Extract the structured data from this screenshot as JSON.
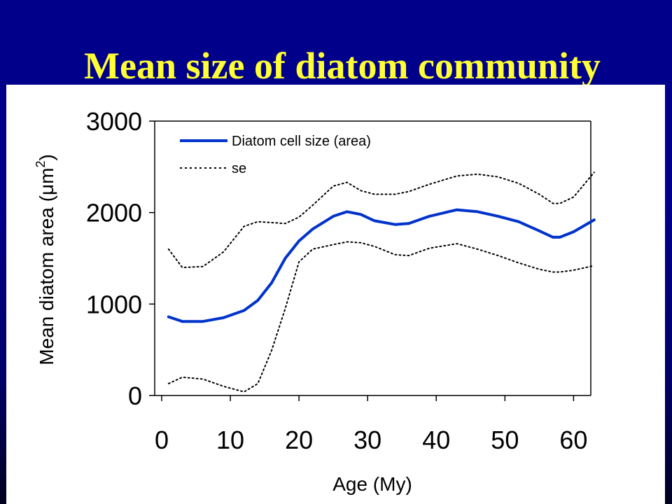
{
  "slide": {
    "title": "Mean size of diatom community"
  },
  "colors": {
    "background": "#00008b",
    "title": "#ffff33",
    "panel": "#ffffff",
    "main_series": "#0033cc",
    "se_series": "#000000"
  },
  "chart_data": {
    "type": "line",
    "title": "",
    "xlabel": "Age (My)",
    "ylabel": "Mean diatom area (",
    "ylabel_unit": "μm",
    "ylabel_exp": "2",
    "ylabel_close": ")",
    "xlim": [
      0,
      63
    ],
    "ylim": [
      0,
      3000
    ],
    "xticks": [
      0,
      10,
      20,
      30,
      40,
      50,
      60
    ],
    "yticks": [
      0,
      1000,
      2000,
      3000
    ],
    "grid": false,
    "legend_position": "top-left",
    "x": [
      1,
      3,
      6,
      9,
      12,
      14,
      16,
      18,
      20,
      22,
      25,
      27,
      29,
      31,
      34,
      36,
      39,
      43,
      46,
      49,
      52,
      55,
      57,
      58,
      60,
      63
    ],
    "series": [
      {
        "name": "Diatom cell size (area)",
        "style": "solid",
        "values": [
          860,
          810,
          810,
          850,
          930,
          1040,
          1230,
          1500,
          1690,
          1820,
          1960,
          2010,
          1980,
          1910,
          1870,
          1880,
          1960,
          2030,
          2010,
          1960,
          1900,
          1800,
          1730,
          1730,
          1790,
          1920
        ]
      },
      {
        "name": "se",
        "style": "dotted",
        "values": [
          1600,
          1400,
          1410,
          1570,
          1850,
          1900,
          1890,
          1880,
          1950,
          2080,
          2290,
          2330,
          2240,
          2200,
          2200,
          2230,
          2310,
          2400,
          2420,
          2390,
          2320,
          2200,
          2100,
          2100,
          2170,
          2440
        ]
      },
      {
        "name": "",
        "style": "dotted",
        "values": [
          130,
          200,
          180,
          100,
          40,
          130,
          490,
          950,
          1460,
          1600,
          1650,
          1680,
          1670,
          1630,
          1540,
          1530,
          1610,
          1660,
          1600,
          1530,
          1450,
          1380,
          1350,
          1350,
          1370,
          1420
        ]
      }
    ]
  }
}
